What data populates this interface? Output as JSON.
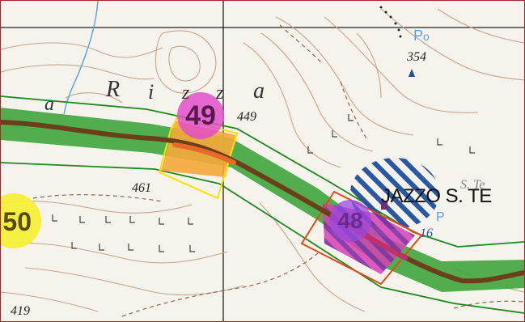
{
  "map": {
    "place_name_letters": [
      "a",
      "R",
      "i",
      "z",
      "z",
      "a"
    ],
    "jazzo_label": "JAZZO S. TE",
    "jazzo_tag": "S. Te",
    "elevations": {
      "e354": "354",
      "e449": "449",
      "e461": "461",
      "e416": "16",
      "e419": "419"
    },
    "symbols": {
      "p_top": "P",
      "p_top_sub": "o",
      "p_mid": "P"
    },
    "markers": [
      {
        "id": "49",
        "label": "49",
        "color": "#e050c8"
      },
      {
        "id": "50",
        "label": "50",
        "color": "#f5ef3a"
      },
      {
        "id": "48",
        "label": "48",
        "color": "#9a49e0"
      }
    ],
    "colors": {
      "corridor_green": "#3fa53c",
      "corridor_outline": "#1e8a1e",
      "route_brown": "#6b3f1a",
      "contour_brown": "#c9a58a",
      "orange_zone": "#f6a93a",
      "yellow_outline": "#ffe100",
      "magenta_zone": "#d63fb5",
      "red_outline": "#e24b1d",
      "blue_hatch": "#1e4fa0",
      "stream_blue": "#5aa0e0",
      "grid_black": "#222222"
    }
  }
}
